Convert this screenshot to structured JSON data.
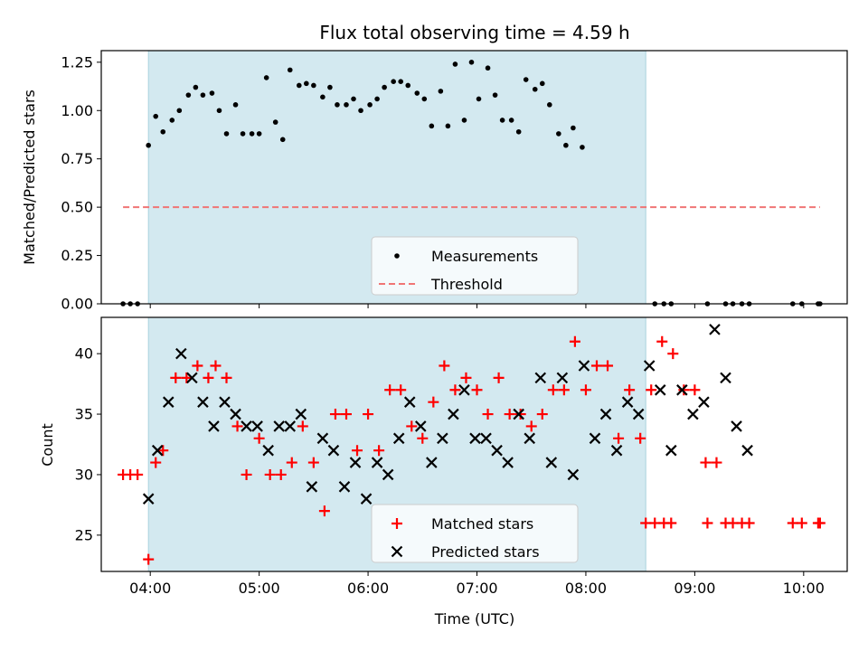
{
  "chart_data": [
    {
      "type": "scatter",
      "title": "Flux total observing time = 4.59 h",
      "xlabel": "",
      "ylabel": "Matched/Predicted stars",
      "ylim": [
        0,
        1.31
      ],
      "yticks": [
        0.0,
        0.25,
        0.5,
        0.75,
        1.0,
        1.25
      ],
      "ytick_labels": [
        "0.00",
        "0.25",
        "0.50",
        "0.75",
        "1.00",
        "1.25"
      ],
      "xlim": [
        "03:33",
        "10:24"
      ],
      "xticks": [
        "04:00",
        "05:00",
        "06:00",
        "07:00",
        "08:00",
        "09:00",
        "10:00"
      ],
      "shaded_range": [
        "03:59",
        "08:33"
      ],
      "shade_color": "#d3e9f0",
      "legend_position": "lower center",
      "series": [
        {
          "name": "Measurements",
          "kind": "scatter",
          "marker": "dot",
          "color": "#000000",
          "points": [
            [
              "03:45",
              0.0
            ],
            [
              "03:49",
              0.0
            ],
            [
              "03:53",
              0.0
            ],
            [
              "03:59",
              0.82
            ],
            [
              "04:03",
              0.97
            ],
            [
              "04:07",
              0.89
            ],
            [
              "04:12",
              0.95
            ],
            [
              "04:16",
              1.0
            ],
            [
              "04:21",
              1.08
            ],
            [
              "04:25",
              1.12
            ],
            [
              "04:29",
              1.08
            ],
            [
              "04:34",
              1.09
            ],
            [
              "04:38",
              1.0
            ],
            [
              "04:42",
              0.88
            ],
            [
              "04:47",
              1.03
            ],
            [
              "04:51",
              0.88
            ],
            [
              "04:56",
              0.88
            ],
            [
              "05:00",
              0.88
            ],
            [
              "05:04",
              1.17
            ],
            [
              "05:09",
              0.94
            ],
            [
              "05:13",
              0.85
            ],
            [
              "05:17",
              1.21
            ],
            [
              "05:22",
              1.13
            ],
            [
              "05:26",
              1.14
            ],
            [
              "05:30",
              1.13
            ],
            [
              "05:35",
              1.07
            ],
            [
              "05:39",
              1.12
            ],
            [
              "05:43",
              1.03
            ],
            [
              "05:48",
              1.03
            ],
            [
              "05:52",
              1.06
            ],
            [
              "05:56",
              1.0
            ],
            [
              "06:01",
              1.03
            ],
            [
              "06:05",
              1.06
            ],
            [
              "06:09",
              1.12
            ],
            [
              "06:14",
              1.15
            ],
            [
              "06:18",
              1.15
            ],
            [
              "06:22",
              1.13
            ],
            [
              "06:27",
              1.09
            ],
            [
              "06:31",
              1.06
            ],
            [
              "06:35",
              0.92
            ],
            [
              "06:40",
              1.1
            ],
            [
              "06:44",
              0.92
            ],
            [
              "06:48",
              1.24
            ],
            [
              "06:53",
              0.95
            ],
            [
              "06:57",
              1.25
            ],
            [
              "07:01",
              1.06
            ],
            [
              "07:06",
              1.22
            ],
            [
              "07:10",
              1.08
            ],
            [
              "07:14",
              0.95
            ],
            [
              "07:19",
              0.95
            ],
            [
              "07:23",
              0.89
            ],
            [
              "07:27",
              1.16
            ],
            [
              "07:32",
              1.11
            ],
            [
              "07:36",
              1.14
            ],
            [
              "07:40",
              1.03
            ],
            [
              "07:45",
              0.88
            ],
            [
              "07:49",
              0.82
            ],
            [
              "07:53",
              0.91
            ],
            [
              "07:58",
              0.81
            ],
            [
              "08:38",
              0.0
            ],
            [
              "08:43",
              0.0
            ],
            [
              "08:47",
              0.0
            ],
            [
              "09:07",
              0.0
            ],
            [
              "09:17",
              0.0
            ],
            [
              "09:21",
              0.0
            ],
            [
              "09:26",
              0.0
            ],
            [
              "09:30",
              0.0
            ],
            [
              "09:54",
              0.0
            ],
            [
              "09:59",
              0.0
            ],
            [
              "10:08",
              0.0
            ],
            [
              "10:09",
              0.0
            ]
          ]
        },
        {
          "name": "Threshold",
          "kind": "line",
          "style": "dashed",
          "color": "#f07575",
          "points": [
            [
              "03:45",
              0.5
            ],
            [
              "10:09",
              0.5
            ]
          ]
        }
      ]
    },
    {
      "type": "scatter",
      "title": "",
      "xlabel": "Time (UTC)",
      "ylabel": "Count",
      "ylim": [
        22,
        43
      ],
      "yticks": [
        25,
        30,
        35,
        40
      ],
      "ytick_labels": [
        "25",
        "30",
        "35",
        "40"
      ],
      "xlim": [
        "03:33",
        "10:24"
      ],
      "xticks": [
        "04:00",
        "05:00",
        "06:00",
        "07:00",
        "08:00",
        "09:00",
        "10:00"
      ],
      "xtick_labels": [
        "04:00",
        "05:00",
        "06:00",
        "07:00",
        "08:00",
        "09:00",
        "10:00"
      ],
      "shaded_range": [
        "03:59",
        "08:33"
      ],
      "shade_color": "#d3e9f0",
      "legend_position": "lower center",
      "series": [
        {
          "name": "Matched stars",
          "kind": "scatter",
          "marker": "plus",
          "color": "#ff0000",
          "points": [
            [
              "03:45",
              30
            ],
            [
              "03:49",
              30
            ],
            [
              "03:53",
              30
            ],
            [
              "03:59",
              23
            ],
            [
              "04:03",
              31
            ],
            [
              "04:07",
              32
            ],
            [
              "04:14",
              38
            ],
            [
              "04:20",
              38
            ],
            [
              "04:26",
              39
            ],
            [
              "04:32",
              38
            ],
            [
              "04:36",
              39
            ],
            [
              "04:42",
              38
            ],
            [
              "04:48",
              34
            ],
            [
              "04:53",
              30
            ],
            [
              "05:00",
              33
            ],
            [
              "05:06",
              30
            ],
            [
              "05:12",
              30
            ],
            [
              "05:18",
              31
            ],
            [
              "05:24",
              34
            ],
            [
              "05:30",
              31
            ],
            [
              "05:36",
              27
            ],
            [
              "05:42",
              35
            ],
            [
              "05:48",
              35
            ],
            [
              "05:54",
              32
            ],
            [
              "06:00",
              35
            ],
            [
              "06:06",
              32
            ],
            [
              "06:12",
              37
            ],
            [
              "06:18",
              37
            ],
            [
              "06:24",
              34
            ],
            [
              "06:30",
              33
            ],
            [
              "06:36",
              36
            ],
            [
              "06:42",
              39
            ],
            [
              "06:48",
              37
            ],
            [
              "06:54",
              38
            ],
            [
              "07:00",
              37
            ],
            [
              "07:06",
              35
            ],
            [
              "07:12",
              38
            ],
            [
              "07:18",
              35
            ],
            [
              "07:24",
              35
            ],
            [
              "07:30",
              34
            ],
            [
              "07:36",
              35
            ],
            [
              "07:42",
              37
            ],
            [
              "07:48",
              37
            ],
            [
              "07:54",
              41
            ],
            [
              "08:00",
              37
            ],
            [
              "08:06",
              39
            ],
            [
              "08:12",
              39
            ],
            [
              "08:18",
              33
            ],
            [
              "08:24",
              37
            ],
            [
              "08:30",
              33
            ],
            [
              "08:36",
              37
            ],
            [
              "08:42",
              41
            ],
            [
              "08:48",
              40
            ],
            [
              "08:54",
              37
            ],
            [
              "09:00",
              37
            ],
            [
              "09:06",
              31
            ],
            [
              "09:12",
              31
            ],
            [
              "08:33",
              26
            ],
            [
              "08:38",
              26
            ],
            [
              "08:43",
              26
            ],
            [
              "08:47",
              26
            ],
            [
              "09:07",
              26
            ],
            [
              "09:17",
              26
            ],
            [
              "09:21",
              26
            ],
            [
              "09:26",
              26
            ],
            [
              "09:30",
              26
            ],
            [
              "09:54",
              26
            ],
            [
              "09:59",
              26
            ],
            [
              "10:08",
              26
            ],
            [
              "10:09",
              26
            ]
          ]
        },
        {
          "name": "Predicted stars",
          "kind": "scatter",
          "marker": "x",
          "color": "#000000",
          "points": [
            [
              "03:59",
              28
            ],
            [
              "04:04",
              32
            ],
            [
              "04:10",
              36
            ],
            [
              "04:17",
              40
            ],
            [
              "04:23",
              38
            ],
            [
              "04:29",
              36
            ],
            [
              "04:35",
              34
            ],
            [
              "04:41",
              36
            ],
            [
              "04:47",
              35
            ],
            [
              "04:53",
              34
            ],
            [
              "04:59",
              34
            ],
            [
              "05:05",
              32
            ],
            [
              "05:11",
              34
            ],
            [
              "05:17",
              34
            ],
            [
              "05:23",
              35
            ],
            [
              "05:29",
              29
            ],
            [
              "05:35",
              33
            ],
            [
              "05:41",
              32
            ],
            [
              "05:47",
              29
            ],
            [
              "05:53",
              31
            ],
            [
              "05:59",
              28
            ],
            [
              "06:05",
              31
            ],
            [
              "06:11",
              30
            ],
            [
              "06:17",
              33
            ],
            [
              "06:23",
              36
            ],
            [
              "06:29",
              34
            ],
            [
              "06:35",
              31
            ],
            [
              "06:41",
              33
            ],
            [
              "06:47",
              35
            ],
            [
              "06:53",
              37
            ],
            [
              "06:59",
              33
            ],
            [
              "07:05",
              33
            ],
            [
              "07:11",
              32
            ],
            [
              "07:17",
              31
            ],
            [
              "07:23",
              35
            ],
            [
              "07:29",
              33
            ],
            [
              "07:35",
              38
            ],
            [
              "07:41",
              31
            ],
            [
              "07:47",
              38
            ],
            [
              "07:53",
              30
            ],
            [
              "07:59",
              39
            ],
            [
              "08:05",
              33
            ],
            [
              "08:11",
              35
            ],
            [
              "08:17",
              32
            ],
            [
              "08:23",
              36
            ],
            [
              "08:29",
              35
            ],
            [
              "08:35",
              39
            ],
            [
              "08:41",
              37
            ],
            [
              "08:47",
              32
            ],
            [
              "08:53",
              37
            ],
            [
              "08:59",
              35
            ],
            [
              "09:05",
              36
            ],
            [
              "09:11",
              42
            ],
            [
              "09:17",
              38
            ],
            [
              "09:23",
              34
            ],
            [
              "09:29",
              32
            ]
          ]
        }
      ]
    }
  ]
}
